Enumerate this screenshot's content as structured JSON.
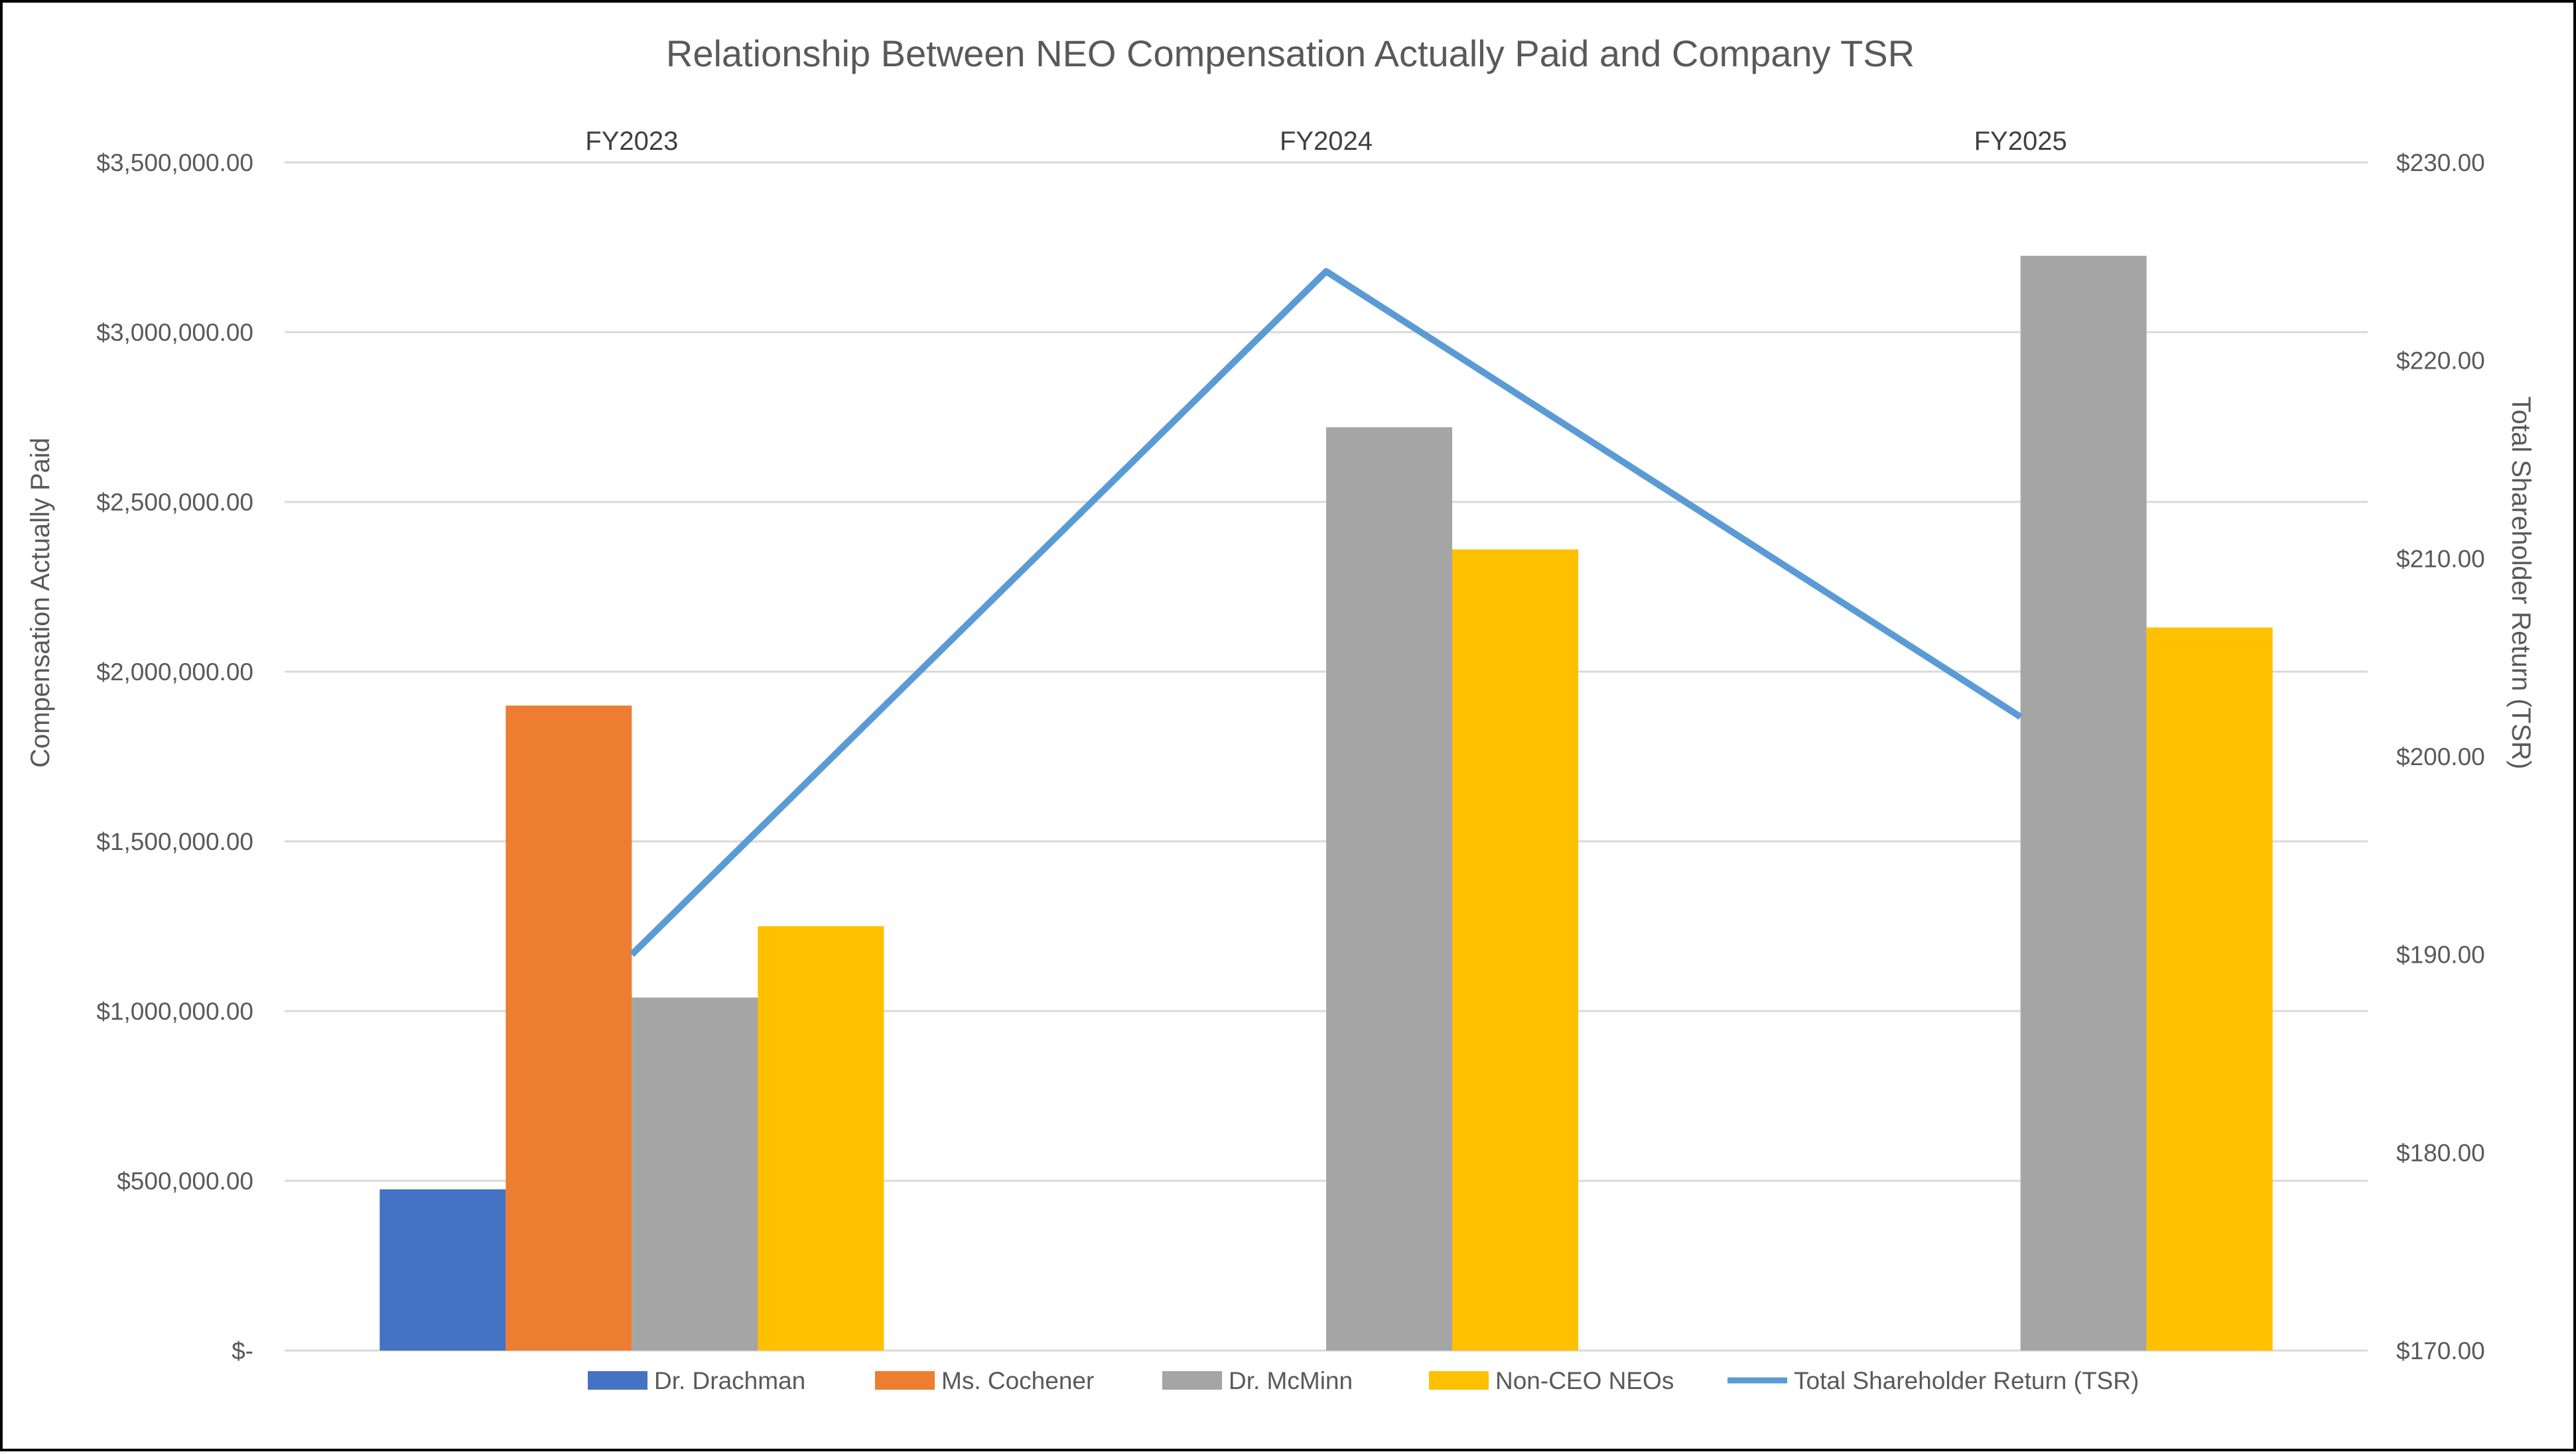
{
  "chart_data": {
    "type": "bar",
    "title": "Relationship Between NEO Compensation Actually Paid and Company TSR",
    "categories": [
      "FY2023",
      "FY2024",
      "FY2025"
    ],
    "ylabel": "Compensation Actually Paid",
    "y2label": "Total Shareholder Return (TSR)",
    "ylim": [
      0,
      3500000
    ],
    "y2lim": [
      170,
      230
    ],
    "y_ticks": [
      {
        "value": 0,
        "label": "$-"
      },
      {
        "value": 500000,
        "label": "$500,000.00"
      },
      {
        "value": 1000000,
        "label": "$1,000,000.00"
      },
      {
        "value": 1500000,
        "label": "$1,500,000.00"
      },
      {
        "value": 2000000,
        "label": "$2,000,000.00"
      },
      {
        "value": 2500000,
        "label": "$2,500,000.00"
      },
      {
        "value": 3000000,
        "label": "$3,000,000.00"
      },
      {
        "value": 3500000,
        "label": "$3,500,000.00"
      }
    ],
    "y2_ticks": [
      {
        "value": 170,
        "label": "$170.00"
      },
      {
        "value": 180,
        "label": "$180.00"
      },
      {
        "value": 190,
        "label": "$190.00"
      },
      {
        "value": 200,
        "label": "$200.00"
      },
      {
        "value": 210,
        "label": "$210.00"
      },
      {
        "value": 220,
        "label": "$220.00"
      },
      {
        "value": 230,
        "label": "$230.00"
      }
    ],
    "grid": true,
    "category_labels_position": "top",
    "legend_position": "bottom",
    "series": [
      {
        "name": "Dr. Drachman",
        "kind": "bar",
        "color": "#4472C4",
        "values": [
          475000,
          null,
          null
        ]
      },
      {
        "name": "Ms. Cochener",
        "kind": "bar",
        "color": "#ED7D31",
        "values": [
          1900000,
          null,
          null
        ]
      },
      {
        "name": "Dr. McMinn",
        "kind": "bar",
        "color": "#A5A5A5",
        "values": [
          1040000,
          2720000,
          3225000
        ]
      },
      {
        "name": "Non-CEO NEOs",
        "kind": "bar",
        "color": "#FFC000",
        "values": [
          1250000,
          2360000,
          2130000
        ]
      },
      {
        "name": "Total Shareholder Return (TSR)",
        "kind": "line",
        "axis": "secondary",
        "color": "#5B9BD5",
        "values": [
          190.0,
          224.5,
          202.0
        ]
      }
    ]
  }
}
